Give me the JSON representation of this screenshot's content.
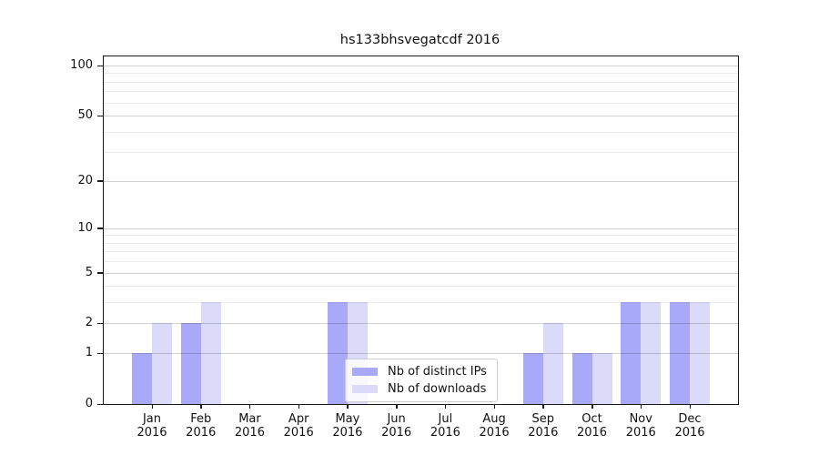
{
  "title": "hs133bhsvegatcdf 2016",
  "chart_data": {
    "type": "bar",
    "title": "hs133bhsvegatcdf 2016",
    "categories": [
      "Jan",
      "Feb",
      "Mar",
      "Apr",
      "May",
      "Jun",
      "Jul",
      "Aug",
      "Sep",
      "Oct",
      "Nov",
      "Dec"
    ],
    "year_label": "2016",
    "series": [
      {
        "name": "Nb of distinct IPs",
        "color": "#a9a9fa",
        "values": [
          1,
          2,
          0,
          0,
          3,
          0,
          0,
          0,
          1,
          1,
          3,
          3
        ]
      },
      {
        "name": "Nb of downloads",
        "color": "#dbdaf9",
        "values": [
          2,
          3,
          0,
          0,
          3,
          0,
          0,
          0,
          2,
          1,
          3,
          3
        ]
      }
    ],
    "yscale": "log(1+x)",
    "ylim": [
      0,
      114
    ],
    "ymax_reference": 100,
    "ytick_values": [
      0,
      1,
      2,
      5,
      10,
      20,
      50,
      100
    ],
    "minor_gridlines": [
      3,
      4,
      6,
      7,
      8,
      9,
      30,
      40,
      60,
      70,
      80,
      90
    ],
    "major_gridlines": [
      1,
      2,
      5,
      10,
      20,
      50,
      100
    ],
    "grid": true,
    "legend_position": "lower center",
    "colors": {
      "spine": "#1a1a1a",
      "distinct_ips": "#a9a9fa",
      "downloads": "#dbdaf9"
    }
  }
}
